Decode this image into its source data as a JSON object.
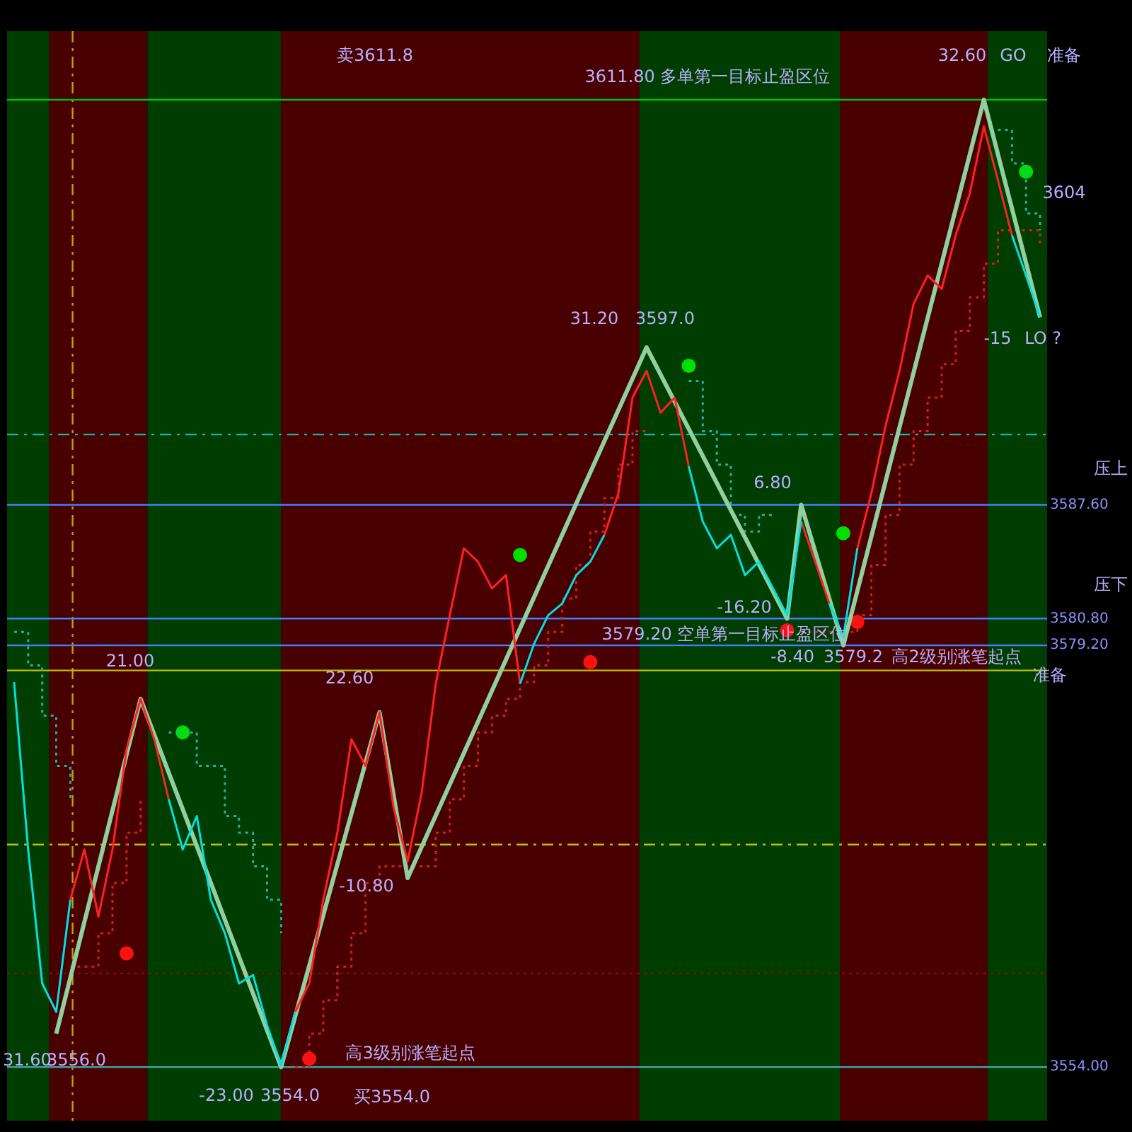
{
  "chart_data": {
    "type": "line",
    "ylim": [
      3550.8,
      3615.9
    ],
    "yticks": [
      {
        "value": 3554,
        "label": "3554.00"
      },
      {
        "value": 3579.2,
        "label": "3579.20"
      },
      {
        "value": 3580.8,
        "label": "3580.80"
      },
      {
        "value": 3587.6,
        "label": "3587.60"
      }
    ],
    "tick_labels": "y",
    "legend": false,
    "marker": "none",
    "line_style": "solid",
    "categories": [
      null,
      null,
      null,
      null,
      null,
      null,
      null,
      null,
      null,
      null,
      null,
      null,
      null,
      null,
      null,
      null,
      null,
      null,
      null,
      null,
      null,
      null,
      null,
      null,
      null,
      null,
      null,
      null,
      null,
      null,
      null,
      null,
      null,
      null,
      null,
      null,
      null,
      null,
      null,
      null,
      null,
      null,
      null,
      null,
      null,
      null,
      null,
      null,
      null,
      null,
      null,
      null,
      null,
      null,
      null,
      null,
      null,
      null,
      null,
      null,
      null,
      null,
      null,
      null,
      null,
      null,
      null,
      null,
      null,
      null,
      null,
      null,
      null,
      null
    ],
    "series": [
      {
        "color": "#00e0e0",
        "values": [
          3577,
          3567,
          3559,
          3557.3,
          3564,
          null,
          null,
          null,
          null,
          null,
          null,
          3570,
          3567,
          3569,
          3564,
          3562,
          3559,
          3559.5,
          3556.5,
          3554.1,
          3557.3,
          null,
          null,
          null,
          null,
          null,
          null,
          null,
          null,
          null,
          null,
          null,
          null,
          null,
          null,
          null,
          3576.9,
          3579.3,
          3581,
          3581.7,
          3583.4,
          3584.2,
          3585.8,
          null,
          null,
          null,
          null,
          null,
          3589.9,
          3586.6,
          3585,
          3585.8,
          3583.4,
          3584.2,
          3582.6,
          3581,
          3586.6,
          null,
          3581.7,
          3579.7,
          3585,
          null,
          null,
          null,
          null,
          null,
          null,
          null,
          null,
          null,
          null,
          3603.7,
          3601.3,
          3598.8
        ]
      },
      {
        "color": "#ff2020",
        "values": [
          null,
          null,
          null,
          null,
          3564,
          3567,
          3563,
          3567,
          3573,
          3576,
          3573.5,
          3570,
          null,
          null,
          null,
          null,
          null,
          null,
          null,
          null,
          3557.3,
          3559,
          3564,
          3568,
          3573.6,
          3572,
          3575.2,
          3569.5,
          3566.3,
          3570.4,
          3576.9,
          3581,
          3585,
          3584.2,
          3582.6,
          3583.4,
          3576.9,
          null,
          null,
          null,
          null,
          null,
          3585.8,
          3588.3,
          3594,
          3595.6,
          3593.1,
          3594,
          3589.9,
          null,
          null,
          null,
          null,
          null,
          null,
          null,
          3586.6,
          3584.2,
          3581.7,
          null,
          3585,
          3588.3,
          3592.3,
          3595.6,
          3599.6,
          3601.3,
          3600.5,
          3603.7,
          3606.2,
          3610.2,
          3607,
          3603.7,
          null,
          null
        ]
      },
      {
        "type": "line",
        "color": "#90d0a0",
        "values": [
          null,
          null,
          null,
          3556,
          null,
          null,
          null,
          null,
          null,
          3576,
          null,
          null,
          null,
          null,
          null,
          null,
          null,
          null,
          null,
          3554,
          null,
          null,
          null,
          null,
          null,
          null,
          3575.2,
          null,
          3565.3,
          null,
          null,
          null,
          null,
          null,
          null,
          null,
          null,
          null,
          null,
          null,
          null,
          null,
          null,
          null,
          null,
          3597,
          null,
          null,
          null,
          null,
          null,
          null,
          null,
          null,
          null,
          3580.8,
          3587.6,
          null,
          null,
          3579.2,
          null,
          null,
          null,
          null,
          null,
          null,
          null,
          null,
          null,
          3611.8,
          null,
          null,
          null,
          3598.8
        ]
      },
      {
        "type": "step",
        "color": "#20b0b0",
        "line_style": "dotted",
        "values": [
          3580,
          3578,
          3575,
          3572,
          3570,
          null,
          null,
          null,
          null,
          null,
          null,
          3574,
          3574,
          3572,
          3572,
          3569,
          3568,
          3566,
          3564,
          3562,
          null,
          null,
          null,
          null,
          null,
          null,
          null,
          null,
          null,
          null,
          null,
          null,
          null,
          null,
          null,
          null,
          null,
          null,
          null,
          null,
          null,
          null,
          null,
          null,
          null,
          null,
          null,
          null,
          3595,
          3592,
          3590,
          3587,
          3586,
          3587,
          3587,
          null,
          null,
          null,
          null,
          null,
          null,
          null,
          null,
          null,
          null,
          null,
          null,
          null,
          null,
          null,
          3610,
          3608,
          3605,
          3604
        ]
      },
      {
        "type": "step",
        "color": "#d02020",
        "line_style": "dotted",
        "values": [
          null,
          null,
          null,
          null,
          3560,
          3560,
          3562,
          3565,
          3568,
          3570,
          null,
          null,
          null,
          null,
          null,
          null,
          null,
          null,
          null,
          null,
          3554,
          3556,
          3558,
          3560,
          3562,
          3565,
          3566,
          3566,
          3566,
          3566,
          3568,
          3570,
          3572,
          3574,
          3575,
          3576,
          3577,
          3578,
          3580,
          3582,
          3584,
          3586,
          3588,
          3590,
          3592,
          3592,
          null,
          null,
          null,
          null,
          null,
          null,
          null,
          null,
          null,
          null,
          3580,
          3580,
          3580,
          3580,
          3581,
          3584,
          3587,
          3590,
          3592,
          3594,
          3596,
          3598,
          3600,
          3602,
          3604,
          3604,
          3604,
          3603
        ]
      },
      {
        "type": "scatter",
        "color": "#00e000",
        "marker": "circle",
        "values": [
          null,
          null,
          null,
          null,
          null,
          null,
          null,
          null,
          null,
          null,
          null,
          null,
          3574,
          null,
          null,
          null,
          null,
          null,
          null,
          null,
          null,
          null,
          null,
          null,
          null,
          null,
          null,
          null,
          null,
          null,
          null,
          null,
          null,
          null,
          null,
          null,
          3584.6,
          null,
          null,
          null,
          null,
          null,
          null,
          null,
          null,
          null,
          null,
          null,
          3595.9,
          null,
          null,
          null,
          null,
          null,
          null,
          null,
          null,
          null,
          null,
          3585.9,
          null,
          null,
          null,
          null,
          null,
          null,
          null,
          null,
          null,
          null,
          null,
          null,
          3607.5,
          null
        ]
      },
      {
        "type": "scatter",
        "color": "#ff1010",
        "marker": "circle",
        "values": [
          null,
          null,
          null,
          null,
          null,
          null,
          null,
          null,
          3560.8,
          null,
          null,
          null,
          null,
          null,
          null,
          null,
          null,
          null,
          null,
          null,
          null,
          3554.5,
          null,
          null,
          null,
          null,
          null,
          null,
          null,
          null,
          null,
          null,
          null,
          null,
          null,
          null,
          null,
          null,
          null,
          null,
          null,
          3578.2,
          null,
          null,
          null,
          null,
          null,
          null,
          null,
          null,
          null,
          null,
          null,
          null,
          null,
          3580.1,
          null,
          null,
          null,
          null,
          3580.6,
          null,
          null,
          null,
          null,
          null,
          null,
          null,
          null,
          null,
          null,
          null,
          null,
          null
        ]
      }
    ],
    "ref_lines": [
      {
        "axis": "y",
        "value": 3611.8,
        "color": "#00c000",
        "line_style": "solid"
      },
      {
        "axis": "y",
        "value": 3591.8,
        "color": "#20b0b0",
        "line_style": "dashed"
      },
      {
        "axis": "y",
        "value": 3567.3,
        "color": "#c0c000",
        "line_style": "dashed"
      },
      {
        "axis": "y",
        "value": 3559.6,
        "color": "#801010",
        "line_style": "dotted"
      },
      {
        "axis": "y",
        "value": 3554,
        "color": "#40a0a0",
        "line_style": "solid"
      },
      {
        "axis": "y",
        "value": 3577.7,
        "color": "#c0c000",
        "line_style": "solid"
      },
      {
        "axis": "y",
        "value": 3587.6,
        "color": "#4080ff",
        "line_style": "solid"
      },
      {
        "axis": "y",
        "value": 3580.8,
        "color": "#4080ff",
        "line_style": "solid"
      },
      {
        "axis": "y",
        "value": 3579.2,
        "color": "#4080ff",
        "line_style": "solid"
      }
    ],
    "annotations": [
      "卖3611.8",
      "3611.80 多单第一目标止盈区位",
      "32.60",
      "GO",
      "准备",
      "3604",
      "-15",
      "LO ?",
      "31.20",
      "3597.0",
      "6.80",
      "-16.20",
      "3579.20 空单第一目标止盈区位",
      "-8.40",
      "3579.2",
      "高2级别涨笔起点",
      "准备",
      "21.00",
      "22.60",
      "-10.80",
      "31.60",
      "3556.0",
      "-23.00",
      "3554.0",
      "高3级别涨笔起点",
      "买3554.0",
      "压上",
      "压下"
    ]
  }
}
